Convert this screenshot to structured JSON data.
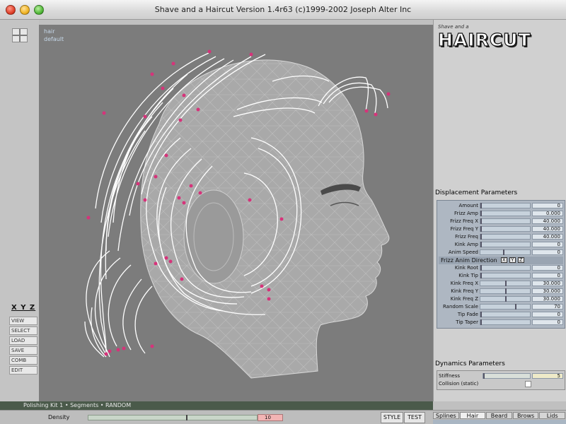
{
  "window": {
    "title": "Shave and a Haircut Version 1.4r63 (c)1999-2002 Joseph Alter Inc"
  },
  "viewport": {
    "label_top": "hair",
    "label_sub": "default"
  },
  "left_panel": {
    "axes_label": "X Y Z",
    "buttons": [
      "VIEW",
      "SELECT",
      "LOAD",
      "SAVE",
      "COMB",
      "EDIT"
    ]
  },
  "logo": {
    "subtitle": "Shave and a",
    "title": "HAIRCUT"
  },
  "displacement": {
    "title": "Displacement Parameters",
    "params": [
      {
        "label": "Amount",
        "value": "0"
      },
      {
        "label": "Frizz Amp",
        "value": "0.000"
      },
      {
        "label": "Frizz Freq X",
        "value": "40.000"
      },
      {
        "label": "Frizz Freq Y",
        "value": "40.000"
      },
      {
        "label": "Frizz Freq",
        "value": "40.000"
      },
      {
        "label": "Kink Amp",
        "value": "0"
      },
      {
        "label": "Anim Speed",
        "value": "0"
      }
    ],
    "direction_label": "Frizz Anim Direction",
    "direction_boxes": [
      "X",
      "Y",
      "Z"
    ],
    "kink_params": [
      {
        "label": "Kink Root",
        "value": "0"
      },
      {
        "label": "Kink Tip",
        "value": "0"
      },
      {
        "label": "Kink Freq X",
        "value": "30.000"
      },
      {
        "label": "Kink Freq Y",
        "value": "30.000"
      },
      {
        "label": "Kink Freq Z",
        "value": "30.000"
      },
      {
        "label": "Random Scale",
        "value": "70"
      },
      {
        "label": "Tip Fade",
        "value": "0"
      },
      {
        "label": "Tip Taper",
        "value": "0"
      }
    ]
  },
  "dynamics": {
    "title": "Dynamics Parameters",
    "stiffness_label": "Stiffness",
    "stiffness_value": "5",
    "collision_label": "Collision (static)"
  },
  "status": {
    "text": "Polishing Kit 1 • Segments • RANDOM"
  },
  "bottom": {
    "slider_label": "Density",
    "slider_value": "10",
    "style_button": "STYLE",
    "test_button": "TEST",
    "tabs": [
      "Splines",
      "Hair",
      "Beard",
      "Brows",
      "Lids"
    ],
    "slider_fraction": 0.58
  },
  "colors": {
    "viewport_bg": "#7c7c7c",
    "head_fill": "#a9a9a9",
    "hair": "#ffffff",
    "guide_point": "#d6337a"
  }
}
